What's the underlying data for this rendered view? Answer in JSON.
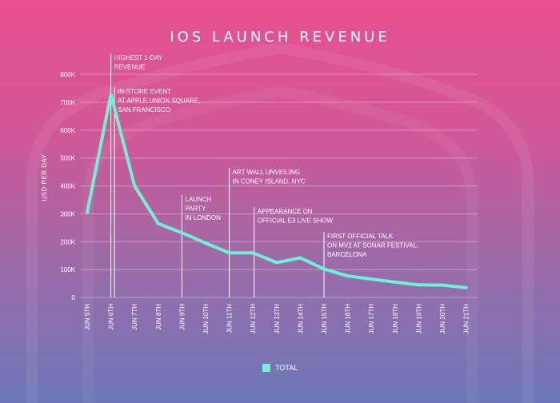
{
  "title": "IOS LAUNCH REVENUE",
  "ylabel": "USD PER DAY",
  "colors": {
    "line": "#6df2d3",
    "text": "#ffffff",
    "grid": "#ffffff"
  },
  "chart_data": {
    "type": "line",
    "title": "IOS LAUNCH REVENUE",
    "xlabel": "",
    "ylabel": "USD PER DAY",
    "categories": [
      "JUN 5TH",
      "JUN 6TH",
      "JUN 7TH",
      "JUN 8TH",
      "JUN 9TH",
      "JUN 10TH",
      "JUN 11TH",
      "JUN 12TH",
      "JUN 13TH",
      "JUN 14TH",
      "JUN 15TH",
      "JUN 16TH",
      "JUN 17TH",
      "JUN 18TH",
      "JUN 19TH",
      "JUN 20TH",
      "JUN 21TH"
    ],
    "ylim": [
      0,
      800000
    ],
    "yticks": [
      0,
      100000,
      200000,
      300000,
      400000,
      500000,
      600000,
      700000,
      800000
    ],
    "ytick_labels": [
      "0",
      "100K",
      "200K",
      "300K",
      "400K",
      "500K",
      "600K",
      "700K",
      "800K"
    ],
    "grid": true,
    "legend_position": "bottom-center",
    "series": [
      {
        "name": "TOTAL",
        "x": [
          0,
          1,
          2,
          3,
          4,
          5,
          6,
          7,
          8,
          9,
          10,
          11,
          12,
          13,
          14,
          15,
          16
        ],
        "values": [
          305000,
          728000,
          400000,
          265000,
          232000,
          195000,
          160000,
          160000,
          125000,
          142000,
          102000,
          77000,
          66000,
          55000,
          45000,
          44000,
          35000
        ]
      }
    ],
    "annotations": [
      {
        "x": 1.0,
        "lines": [
          "HIGHEST 1-DAY",
          "REVENUE"
        ]
      },
      {
        "x": 1.15,
        "lines": [
          "IN-STORE EVENT",
          "AT APPLE UNION SQUARE,",
          "SAN FRANCISCO"
        ]
      },
      {
        "x": 4.0,
        "lines": [
          "LAUNCH",
          "PARTY",
          "IN LONDON"
        ]
      },
      {
        "x": 6.0,
        "lines": [
          "ART WALL UNVEILING",
          "IN CONEY ISLAND, NYC"
        ]
      },
      {
        "x": 7.05,
        "lines": [
          "APPEARANCE ON",
          "OFFICIAL E3 LIVE SHOW"
        ]
      },
      {
        "x": 10.0,
        "lines": [
          "FIRST OFFICIAL TALK",
          "ON MV2 AT SONAR FESTIVAL,",
          "BARCELONA"
        ]
      }
    ]
  }
}
